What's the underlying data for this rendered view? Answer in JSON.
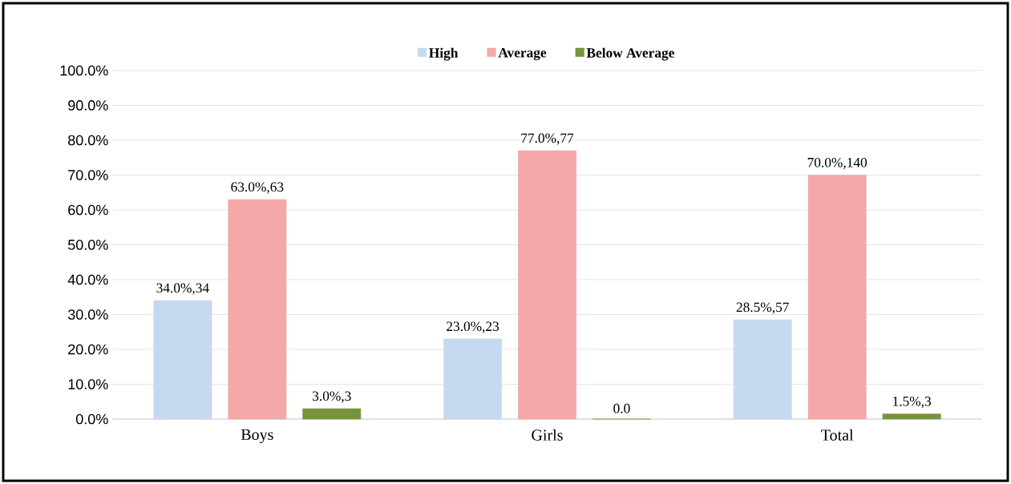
{
  "chart_data": {
    "type": "bar",
    "categories": [
      "Boys",
      "Girls",
      "Total"
    ],
    "series": [
      {
        "name": "High",
        "color": "#c6d9f1",
        "values": [
          34,
          23,
          28.5
        ],
        "value_labels": [
          "34.0%,34",
          "23.0%,23",
          "28.5%,57"
        ]
      },
      {
        "name": "Average",
        "color": "#f4a9a8",
        "values": [
          63,
          77,
          70
        ],
        "value_labels": [
          "63.0%,63",
          "77.0%,77",
          "70.0%,140"
        ]
      },
      {
        "name": "Below Average",
        "color": "#77933c",
        "values": [
          3,
          0,
          1.5
        ],
        "value_labels": [
          "3.0%,3",
          "0.0",
          "1.5%,3"
        ]
      }
    ],
    "ylim": [
      0,
      100
    ],
    "yticks": [
      {
        "value": 0,
        "label": "0.0%"
      },
      {
        "value": 10,
        "label": "10.0%"
      },
      {
        "value": 20,
        "label": "20.0%"
      },
      {
        "value": 30,
        "label": "30.0%"
      },
      {
        "value": 40,
        "label": "40.0%"
      },
      {
        "value": 50,
        "label": "50.0%"
      },
      {
        "value": 60,
        "label": "60.0%"
      },
      {
        "value": 70,
        "label": "70.0%"
      },
      {
        "value": 80,
        "label": "80.0%"
      },
      {
        "value": 90,
        "label": "90.0%"
      },
      {
        "value": 100,
        "label": "100.0%"
      }
    ],
    "grid": "y",
    "legend": "top"
  }
}
